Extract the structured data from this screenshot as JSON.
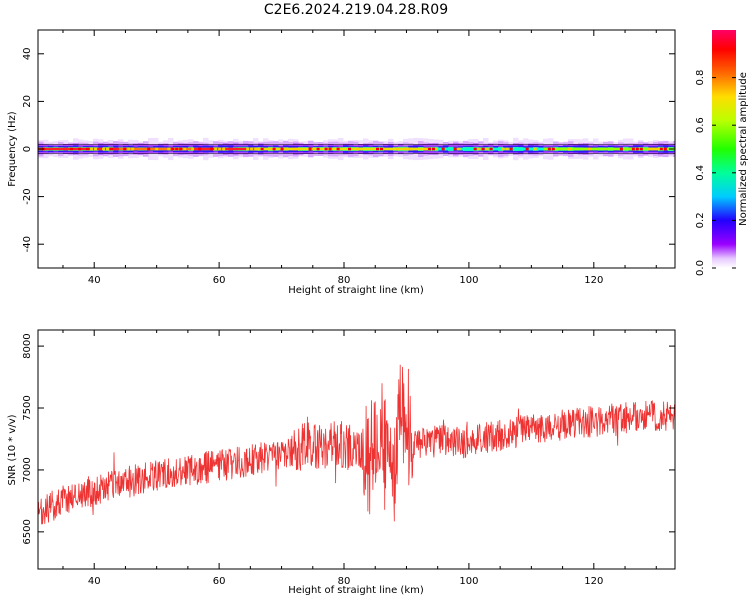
{
  "title": "C2E6.2024.219.04.28.R09",
  "chart_data": [
    {
      "type": "heatmap",
      "xlabel": "Height of straight line (km)",
      "ylabel": "Frequency (Hz)",
      "xlim": [
        31,
        133
      ],
      "ylim": [
        -50,
        50
      ],
      "x_ticks": [
        40,
        60,
        80,
        100,
        120
      ],
      "y_ticks": [
        -40,
        -20,
        0,
        20,
        40
      ],
      "band_center_hz": 0,
      "band_half_width_hz": 2,
      "colorbar": {
        "label": "Normalized spectral amplitude",
        "range": [
          0,
          1
        ],
        "ticks": [
          0.0,
          0.2,
          0.4,
          0.6,
          0.8
        ]
      },
      "band_segments": [
        {
          "x0": 31,
          "x1": 44,
          "peak_amplitude": 0.95
        },
        {
          "x0": 44,
          "x1": 56,
          "peak_amplitude": 0.85
        },
        {
          "x0": 56,
          "x1": 66,
          "peak_amplitude": 0.95
        },
        {
          "x0": 66,
          "x1": 80,
          "peak_amplitude": 0.75
        },
        {
          "x0": 80,
          "x1": 95,
          "peak_amplitude": 0.7
        },
        {
          "x0": 95,
          "x1": 112,
          "peak_amplitude": 0.5
        },
        {
          "x0": 112,
          "x1": 133,
          "peak_amplitude": 0.65
        }
      ],
      "grid": false
    },
    {
      "type": "line",
      "xlabel": "Height of straight line (km)",
      "ylabel": "SNR (10 * v/v)",
      "xlim": [
        31,
        133
      ],
      "ylim": [
        6200,
        8130
      ],
      "x_ticks": [
        40,
        60,
        80,
        100,
        120
      ],
      "y_ticks": [
        6500,
        7000,
        7500,
        8000
      ],
      "line_color": "#ee3333",
      "series": [
        {
          "x": [
            31,
            33,
            35,
            37,
            39,
            41,
            43,
            45,
            47,
            49,
            51,
            53,
            55,
            57,
            59,
            61,
            63,
            65,
            67,
            69,
            71,
            73,
            74,
            75,
            77,
            79,
            81,
            83,
            85,
            86,
            87,
            88,
            89,
            90,
            91,
            93,
            95,
            97,
            99,
            101,
            103,
            105,
            107,
            109,
            111,
            113,
            115,
            117,
            119,
            121,
            123,
            125,
            127,
            129,
            131,
            133
          ],
          "values": [
            6620,
            6700,
            6760,
            6800,
            6820,
            6840,
            6870,
            6900,
            6920,
            6940,
            6960,
            6980,
            7000,
            7010,
            7030,
            7040,
            7060,
            7080,
            7100,
            7120,
            7140,
            7170,
            7250,
            7190,
            7200,
            7220,
            7180,
            7150,
            7200,
            7350,
            7100,
            6900,
            7550,
            7280,
            7200,
            7230,
            7260,
            7240,
            7220,
            7230,
            7260,
            7280,
            7300,
            7320,
            7340,
            7350,
            7360,
            7380,
            7390,
            7400,
            7410,
            7420,
            7430,
            7430,
            7440,
            7450
          ]
        }
      ],
      "grid": false
    }
  ]
}
